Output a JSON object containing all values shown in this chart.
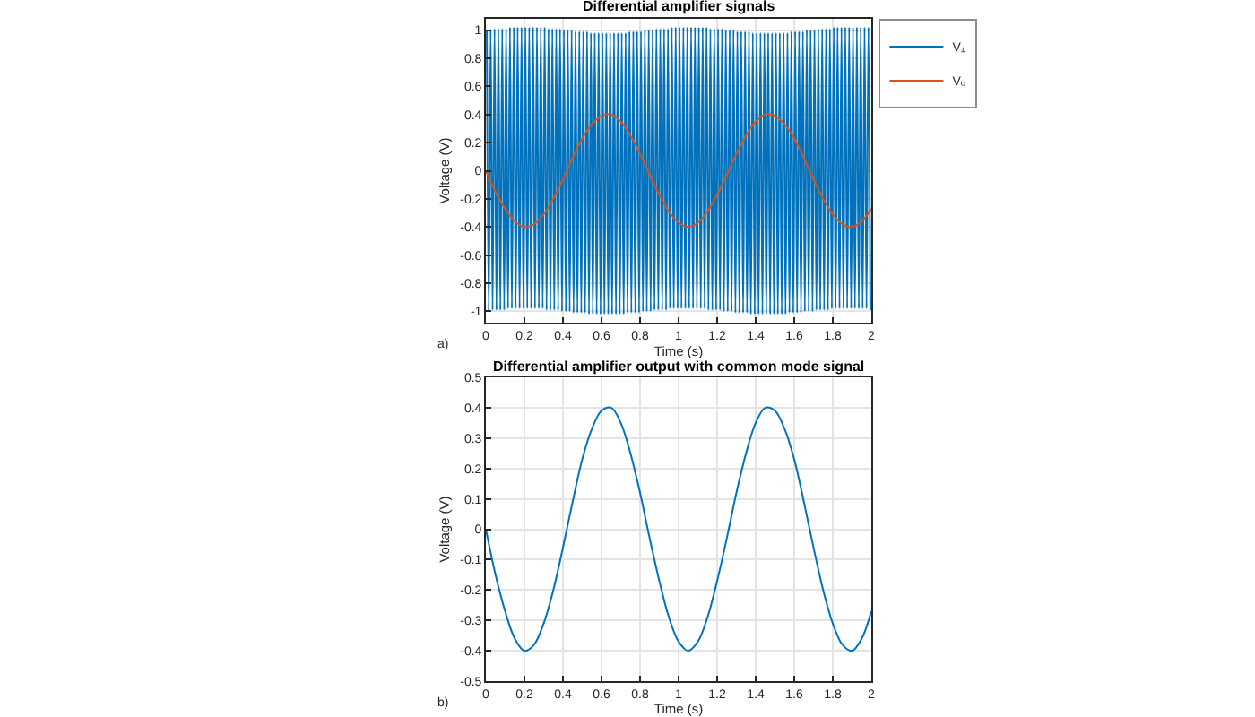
{
  "chart_data": [
    {
      "type": "line",
      "title": "Differential amplifier signals",
      "xlabel": "Time (s)",
      "ylabel": "Voltage (V)",
      "annotations": [
        "a)"
      ],
      "xlim": [
        0,
        2
      ],
      "xticks": [
        0,
        0.2,
        0.4,
        0.6,
        0.8,
        1,
        1.2,
        1.4,
        1.6,
        1.8,
        2
      ],
      "ylim": [
        -1.08,
        1.08
      ],
      "yticks": [
        -1,
        -0.8,
        -0.6,
        -0.4,
        -0.2,
        0,
        0.2,
        0.4,
        0.6,
        0.8,
        1
      ],
      "grid": true,
      "legend": "top right",
      "series": [
        {
          "name": "V₁",
          "color": "#0072bd",
          "x": [
            0.005,
            0.015,
            0.025,
            0.035,
            0.045,
            0.055,
            0.065,
            0.075,
            0.085,
            0.095,
            0.105,
            0.115,
            0.125,
            0.135,
            0.145,
            0.155,
            0.165,
            0.175,
            0.185,
            0.195,
            0.205,
            0.215,
            0.225,
            0.235,
            0.245,
            0.255,
            0.265,
            0.275,
            0.285,
            0.295,
            0.305,
            0.315,
            0.325,
            0.335,
            0.345,
            0.355,
            0.365,
            0.375,
            0.385,
            0.395,
            0.405,
            0.415,
            0.425,
            0.435,
            0.445,
            0.455,
            0.465,
            0.475,
            0.485,
            0.495,
            0.505,
            0.515,
            0.525,
            0.535,
            0.545,
            0.555,
            0.565,
            0.575,
            0.585,
            0.595,
            0.605,
            0.615,
            0.625,
            0.635,
            0.645,
            0.655,
            0.665,
            0.675,
            0.685,
            0.695,
            0.705,
            0.715,
            0.725,
            0.735,
            0.745,
            0.755,
            0.765,
            0.775,
            0.785,
            0.795,
            0.805,
            0.815,
            0.825,
            0.835,
            0.845,
            0.855,
            0.865,
            0.875,
            0.885,
            0.895,
            0.905,
            0.915,
            0.925,
            0.935,
            0.945,
            0.955,
            0.965,
            0.975,
            0.985,
            0.995,
            1.005,
            1.015,
            1.025,
            1.035,
            1.045,
            1.055,
            1.065,
            1.075,
            1.085,
            1.095,
            1.105,
            1.115,
            1.125,
            1.135,
            1.145,
            1.155,
            1.165,
            1.175,
            1.185,
            1.195,
            1.205,
            1.215,
            1.225,
            1.235,
            1.245,
            1.255,
            1.265,
            1.275,
            1.285,
            1.295,
            1.305,
            1.315,
            1.325,
            1.335,
            1.345,
            1.355,
            1.365,
            1.375,
            1.385,
            1.395,
            1.405,
            1.415,
            1.425,
            1.435,
            1.445,
            1.455,
            1.465,
            1.475,
            1.485,
            1.495,
            1.505,
            1.515,
            1.525,
            1.535,
            1.545,
            1.555,
            1.565,
            1.575,
            1.585,
            1.595,
            1.605,
            1.615,
            1.625,
            1.635,
            1.645,
            1.655,
            1.665,
            1.675,
            1.685,
            1.695,
            1.705,
            1.715,
            1.725,
            1.735,
            1.745,
            1.755,
            1.765,
            1.775,
            1.785,
            1.795,
            1.805,
            1.815,
            1.825,
            1.835,
            1.845,
            1.855,
            1.865,
            1.875,
            1.885,
            1.895,
            1.905,
            1.915,
            1.925,
            1.935,
            1.945,
            1.955,
            1.965,
            1.975,
            1.985,
            1.995
          ],
          "values": [
            1,
            -1,
            1,
            -0.99,
            1.01,
            -0.99,
            1.01,
            -0.99,
            1.01,
            -0.99,
            1.01,
            -0.98,
            1.02,
            -0.98,
            1.02,
            -0.98,
            1.02,
            -0.98,
            1.02,
            -0.98,
            1.02,
            -0.98,
            1.02,
            -0.98,
            1.02,
            -0.98,
            1.02,
            -0.98,
            1.02,
            -0.98,
            1.02,
            -0.99,
            1.01,
            -0.99,
            1.01,
            -0.99,
            1.01,
            -0.99,
            1.01,
            -1,
            1,
            -1,
            1,
            -1,
            1,
            -1.01,
            0.99,
            -1.01,
            0.99,
            -1.01,
            0.99,
            -1.01,
            0.99,
            -1.02,
            0.98,
            -1.02,
            0.98,
            -1.02,
            0.98,
            -1.02,
            0.98,
            -1.02,
            0.98,
            -1.02,
            0.98,
            -1.02,
            0.98,
            -1.02,
            0.98,
            -1.02,
            0.98,
            -1.02,
            0.98,
            -1.01,
            0.99,
            -1.01,
            0.99,
            -1.01,
            0.99,
            -1.01,
            0.99,
            -1,
            1,
            -1,
            1,
            -1,
            1,
            -0.99,
            1.01,
            -0.99,
            1.01,
            -0.99,
            1.01,
            -0.99,
            1.01,
            -0.98,
            1.02,
            -0.98,
            1.02,
            -0.98,
            1.02,
            -0.98,
            1.02,
            -0.98,
            1.02,
            -0.98,
            1.02,
            -0.98,
            1.02,
            -0.98,
            1.02,
            -0.98,
            1.02,
            -0.98,
            1.02,
            -0.99,
            1.01,
            -0.99,
            1.01,
            -0.99,
            1.01,
            -0.99,
            1.01,
            -1,
            1,
            -1,
            1,
            -1,
            1,
            -1.01,
            0.99,
            -1.01,
            0.99,
            -1.01,
            0.99,
            -1.01,
            0.99,
            -1.02,
            0.98,
            -1.02,
            0.98,
            -1.02,
            0.98,
            -1.02,
            0.98,
            -1.02,
            0.98,
            -1.02,
            0.98,
            -1.02,
            0.98,
            -1.02,
            0.98,
            -1.02,
            0.98,
            -1.02,
            0.98,
            -1.01,
            0.99,
            -1.01,
            0.99,
            -1.01,
            0.99,
            -1.01,
            0.99,
            -1,
            1,
            -1,
            1,
            -1,
            1,
            -0.99,
            1.01,
            -0.99,
            1.01,
            -0.99,
            1.01,
            -0.99,
            1.01,
            -0.98,
            1.02,
            -0.98,
            1.02,
            -0.98,
            1.02,
            -0.98,
            1.02,
            -0.98,
            1.02,
            -0.98,
            1.02,
            -0.98,
            1.02,
            -0.98,
            1.02,
            -0.98,
            1.02,
            -0.98,
            1.02,
            -0.99
          ]
        },
        {
          "name": "Vₒ",
          "color": "#d95319",
          "x": [
            0,
            0.05,
            0.1,
            0.15,
            0.2,
            0.25,
            0.3,
            0.35,
            0.4,
            0.45,
            0.5,
            0.55,
            0.6,
            0.65,
            0.7,
            0.75,
            0.8,
            0.85,
            0.9,
            0.95,
            1,
            1.05,
            1.1,
            1.15,
            1.2,
            1.25,
            1.3,
            1.35,
            1.4,
            1.45,
            1.5,
            1.55,
            1.6,
            1.65,
            1.7,
            1.75,
            1.8,
            1.85,
            1.9,
            1.95,
            2
          ],
          "values": [
            0,
            -0.15,
            -0.27,
            -0.36,
            -0.4,
            -0.38,
            -0.31,
            -0.2,
            -0.06,
            0.09,
            0.23,
            0.33,
            0.39,
            0.4,
            0.35,
            0.25,
            0.12,
            -0.03,
            -0.17,
            -0.29,
            -0.37,
            -0.4,
            -0.37,
            -0.29,
            -0.17,
            -0.03,
            0.12,
            0.25,
            0.35,
            0.4,
            0.39,
            0.33,
            0.23,
            0.09,
            -0.06,
            -0.2,
            -0.31,
            -0.38,
            -0.4,
            -0.36,
            -0.27
          ]
        }
      ]
    },
    {
      "type": "line",
      "title": "Differential amplifier output with common mode signal",
      "xlabel": "Time (s)",
      "ylabel": "Voltage (V)",
      "annotations": [
        "b)"
      ],
      "xlim": [
        0,
        2
      ],
      "xticks": [
        0,
        0.2,
        0.4,
        0.6,
        0.8,
        1,
        1.2,
        1.4,
        1.6,
        1.8,
        2
      ],
      "ylim": [
        -0.5,
        0.5
      ],
      "yticks": [
        -0.5,
        -0.4,
        -0.3,
        -0.2,
        -0.1,
        0,
        0.1,
        0.2,
        0.3,
        0.4,
        0.5
      ],
      "grid": true,
      "series": [
        {
          "color": "#0072bd",
          "x": [
            0,
            0.05,
            0.1,
            0.15,
            0.2,
            0.25,
            0.3,
            0.35,
            0.4,
            0.45,
            0.5,
            0.55,
            0.6,
            0.65,
            0.7,
            0.75,
            0.8,
            0.85,
            0.9,
            0.95,
            1,
            1.05,
            1.1,
            1.15,
            1.2,
            1.25,
            1.3,
            1.35,
            1.4,
            1.45,
            1.5,
            1.55,
            1.6,
            1.65,
            1.7,
            1.75,
            1.8,
            1.85,
            1.9,
            1.95,
            2
          ],
          "values": [
            0,
            -0.15,
            -0.27,
            -0.36,
            -0.4,
            -0.38,
            -0.31,
            -0.2,
            -0.06,
            0.09,
            0.23,
            0.33,
            0.39,
            0.4,
            0.35,
            0.25,
            0.12,
            -0.03,
            -0.17,
            -0.29,
            -0.37,
            -0.4,
            -0.37,
            -0.29,
            -0.17,
            -0.03,
            0.12,
            0.25,
            0.35,
            0.4,
            0.39,
            0.33,
            0.23,
            0.09,
            -0.06,
            -0.2,
            -0.31,
            -0.38,
            -0.4,
            -0.36,
            -0.27
          ]
        }
      ]
    }
  ]
}
